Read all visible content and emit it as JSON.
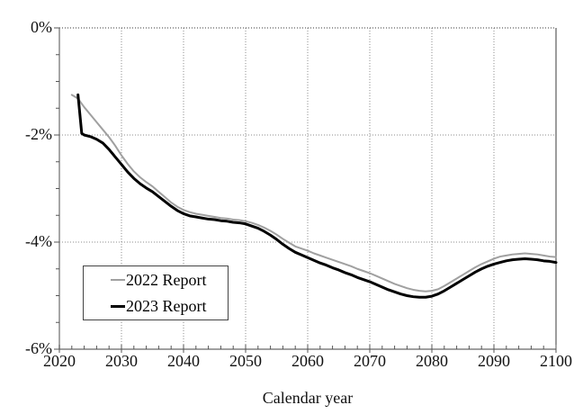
{
  "figure": {
    "background": "#ffffff"
  },
  "chart_data": {
    "type": "line",
    "title": "",
    "xlabel": "Calendar year",
    "ylabel": "",
    "x_axis": {
      "min": 2020,
      "max": 2100,
      "major_ticks": [
        2020,
        2030,
        2040,
        2050,
        2060,
        2070,
        2080,
        2090,
        2100
      ],
      "minor_step": 2
    },
    "y_axis": {
      "min": -6,
      "max": 0,
      "major_ticks": [
        0,
        -2,
        -4,
        -6
      ],
      "major_tick_labels": [
        "0%",
        "-2%",
        "-4%",
        "-6%"
      ],
      "minor_step": 0.5
    },
    "grid": {
      "show": true,
      "style": "dotted",
      "color": "#8c8c8c",
      "zero_line_color": "#3a3a3a",
      "axis_color": "#808080",
      "tick_color": "#555555",
      "right_border_color": "#3a3a3a"
    },
    "legend": {
      "position": "lower-left",
      "entries": [
        {
          "label": "2022 Report",
          "color": "#a0a0a0",
          "line_width": 2
        },
        {
          "label": "2023 Report",
          "color": "#000000",
          "line_width": 3
        }
      ]
    },
    "series": [
      {
        "name": "2022 Report",
        "color": "#a0a0a0",
        "width": 2,
        "points": [
          [
            2022,
            -1.25
          ],
          [
            2023,
            -1.32
          ],
          [
            2024,
            -1.48
          ],
          [
            2025,
            -1.62
          ],
          [
            2026,
            -1.76
          ],
          [
            2027,
            -1.9
          ],
          [
            2028,
            -2.04
          ],
          [
            2029,
            -2.2
          ],
          [
            2030,
            -2.38
          ],
          [
            2031,
            -2.54
          ],
          [
            2032,
            -2.68
          ],
          [
            2033,
            -2.79
          ],
          [
            2034,
            -2.88
          ],
          [
            2035,
            -2.96
          ],
          [
            2036,
            -3.06
          ],
          [
            2037,
            -3.16
          ],
          [
            2038,
            -3.26
          ],
          [
            2039,
            -3.34
          ],
          [
            2040,
            -3.4
          ],
          [
            2041,
            -3.44
          ],
          [
            2042,
            -3.47
          ],
          [
            2043,
            -3.49
          ],
          [
            2044,
            -3.51
          ],
          [
            2045,
            -3.53
          ],
          [
            2046,
            -3.55
          ],
          [
            2047,
            -3.56
          ],
          [
            2048,
            -3.58
          ],
          [
            2049,
            -3.59
          ],
          [
            2050,
            -3.61
          ],
          [
            2051,
            -3.64
          ],
          [
            2052,
            -3.68
          ],
          [
            2053,
            -3.73
          ],
          [
            2054,
            -3.79
          ],
          [
            2055,
            -3.86
          ],
          [
            2056,
            -3.94
          ],
          [
            2057,
            -4.01
          ],
          [
            2058,
            -4.08
          ],
          [
            2059,
            -4.12
          ],
          [
            2060,
            -4.16
          ],
          [
            2061,
            -4.21
          ],
          [
            2062,
            -4.25
          ],
          [
            2063,
            -4.29
          ],
          [
            2064,
            -4.33
          ],
          [
            2065,
            -4.37
          ],
          [
            2066,
            -4.41
          ],
          [
            2067,
            -4.45
          ],
          [
            2068,
            -4.5
          ],
          [
            2069,
            -4.54
          ],
          [
            2070,
            -4.58
          ],
          [
            2071,
            -4.63
          ],
          [
            2072,
            -4.68
          ],
          [
            2073,
            -4.73
          ],
          [
            2074,
            -4.78
          ],
          [
            2075,
            -4.82
          ],
          [
            2076,
            -4.86
          ],
          [
            2077,
            -4.89
          ],
          [
            2078,
            -4.91
          ],
          [
            2079,
            -4.92
          ],
          [
            2080,
            -4.91
          ],
          [
            2081,
            -4.88
          ],
          [
            2082,
            -4.82
          ],
          [
            2083,
            -4.75
          ],
          [
            2084,
            -4.68
          ],
          [
            2085,
            -4.61
          ],
          [
            2086,
            -4.54
          ],
          [
            2087,
            -4.47
          ],
          [
            2088,
            -4.41
          ],
          [
            2089,
            -4.36
          ],
          [
            2090,
            -4.31
          ],
          [
            2091,
            -4.27
          ],
          [
            2092,
            -4.25
          ],
          [
            2093,
            -4.23
          ],
          [
            2094,
            -4.22
          ],
          [
            2095,
            -4.21
          ],
          [
            2096,
            -4.22
          ],
          [
            2097,
            -4.23
          ],
          [
            2098,
            -4.25
          ],
          [
            2099,
            -4.27
          ],
          [
            2100,
            -4.28
          ]
        ]
      },
      {
        "name": "2023 Report",
        "color": "#000000",
        "width": 3,
        "points": [
          [
            2023,
            -1.25
          ],
          [
            2023.6,
            -1.97
          ],
          [
            2024,
            -2.0
          ],
          [
            2025,
            -2.03
          ],
          [
            2026,
            -2.08
          ],
          [
            2027,
            -2.15
          ],
          [
            2028,
            -2.27
          ],
          [
            2029,
            -2.41
          ],
          [
            2030,
            -2.55
          ],
          [
            2031,
            -2.69
          ],
          [
            2032,
            -2.81
          ],
          [
            2033,
            -2.91
          ],
          [
            2034,
            -2.99
          ],
          [
            2035,
            -3.06
          ],
          [
            2036,
            -3.15
          ],
          [
            2037,
            -3.24
          ],
          [
            2038,
            -3.33
          ],
          [
            2039,
            -3.41
          ],
          [
            2040,
            -3.47
          ],
          [
            2041,
            -3.51
          ],
          [
            2042,
            -3.53
          ],
          [
            2043,
            -3.55
          ],
          [
            2044,
            -3.57
          ],
          [
            2045,
            -3.58
          ],
          [
            2046,
            -3.6
          ],
          [
            2047,
            -3.61
          ],
          [
            2048,
            -3.63
          ],
          [
            2049,
            -3.64
          ],
          [
            2050,
            -3.66
          ],
          [
            2051,
            -3.7
          ],
          [
            2052,
            -3.74
          ],
          [
            2053,
            -3.8
          ],
          [
            2054,
            -3.87
          ],
          [
            2055,
            -3.95
          ],
          [
            2056,
            -4.04
          ],
          [
            2057,
            -4.12
          ],
          [
            2058,
            -4.19
          ],
          [
            2059,
            -4.24
          ],
          [
            2060,
            -4.29
          ],
          [
            2061,
            -4.34
          ],
          [
            2062,
            -4.39
          ],
          [
            2063,
            -4.43
          ],
          [
            2064,
            -4.48
          ],
          [
            2065,
            -4.52
          ],
          [
            2066,
            -4.57
          ],
          [
            2067,
            -4.61
          ],
          [
            2068,
            -4.66
          ],
          [
            2069,
            -4.7
          ],
          [
            2070,
            -4.74
          ],
          [
            2071,
            -4.79
          ],
          [
            2072,
            -4.84
          ],
          [
            2073,
            -4.89
          ],
          [
            2074,
            -4.93
          ],
          [
            2075,
            -4.97
          ],
          [
            2076,
            -5.0
          ],
          [
            2077,
            -5.02
          ],
          [
            2078,
            -5.03
          ],
          [
            2079,
            -5.03
          ],
          [
            2080,
            -5.01
          ],
          [
            2081,
            -4.97
          ],
          [
            2082,
            -4.91
          ],
          [
            2083,
            -4.84
          ],
          [
            2084,
            -4.77
          ],
          [
            2085,
            -4.7
          ],
          [
            2086,
            -4.63
          ],
          [
            2087,
            -4.56
          ],
          [
            2088,
            -4.5
          ],
          [
            2089,
            -4.45
          ],
          [
            2090,
            -4.41
          ],
          [
            2091,
            -4.38
          ],
          [
            2092,
            -4.35
          ],
          [
            2093,
            -4.33
          ],
          [
            2094,
            -4.32
          ],
          [
            2095,
            -4.31
          ],
          [
            2096,
            -4.32
          ],
          [
            2097,
            -4.33
          ],
          [
            2098,
            -4.35
          ],
          [
            2099,
            -4.36
          ],
          [
            2100,
            -4.38
          ]
        ]
      }
    ]
  }
}
